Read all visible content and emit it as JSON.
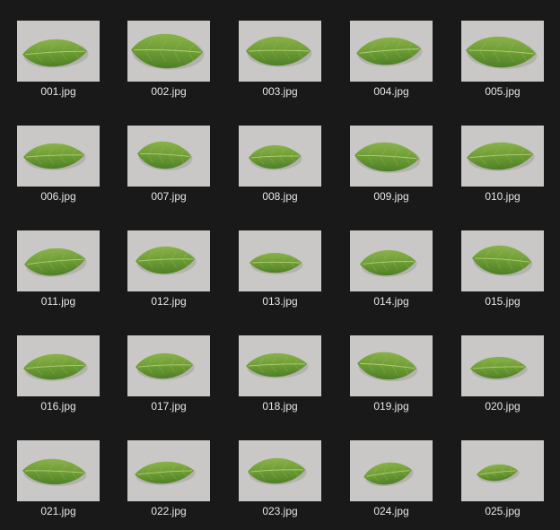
{
  "view": "large-icons",
  "colors": {
    "background": "#191919",
    "label_text": "#e6e6e6",
    "photo_backdrop": "#c9c8c6",
    "leaf_dark": "#4f7f27",
    "leaf_mid": "#6a9a33",
    "leaf_light": "#8bb24a"
  },
  "thumbnail_content": "leaf-photo",
  "files": [
    {
      "name": "001.jpg"
    },
    {
      "name": "002.jpg"
    },
    {
      "name": "003.jpg"
    },
    {
      "name": "004.jpg"
    },
    {
      "name": "005.jpg"
    },
    {
      "name": "006.jpg"
    },
    {
      "name": "007.jpg"
    },
    {
      "name": "008.jpg"
    },
    {
      "name": "009.jpg"
    },
    {
      "name": "010.jpg"
    },
    {
      "name": "011.jpg"
    },
    {
      "name": "012.jpg"
    },
    {
      "name": "013.jpg"
    },
    {
      "name": "014.jpg"
    },
    {
      "name": "015.jpg"
    },
    {
      "name": "016.jpg"
    },
    {
      "name": "017.jpg"
    },
    {
      "name": "018.jpg"
    },
    {
      "name": "019.jpg"
    },
    {
      "name": "020.jpg"
    },
    {
      "name": "021.jpg"
    },
    {
      "name": "022.jpg"
    },
    {
      "name": "023.jpg"
    },
    {
      "name": "024.jpg"
    },
    {
      "name": "025.jpg"
    }
  ]
}
